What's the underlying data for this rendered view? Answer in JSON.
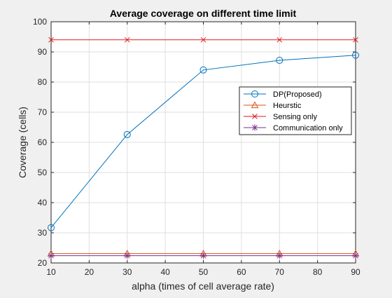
{
  "chart_data": {
    "type": "line",
    "title": "Average coverage on different time limit",
    "xlabel": "alpha (times of cell average rate)",
    "ylabel": "Coverage (cells)",
    "xlim": [
      10,
      90
    ],
    "ylim": [
      20,
      100
    ],
    "xticks": [
      10,
      20,
      30,
      40,
      50,
      60,
      70,
      80,
      90
    ],
    "yticks": [
      20,
      30,
      40,
      50,
      60,
      70,
      80,
      90,
      100
    ],
    "grid": true,
    "legend_position": "right",
    "x": [
      10,
      30,
      50,
      70,
      90
    ],
    "series": [
      {
        "name": "DP(Proposed)",
        "values": [
          31.7,
          62.6,
          84.0,
          87.2,
          88.9
        ],
        "color": "#0072bd",
        "marker": "circle"
      },
      {
        "name": "Heurstic",
        "values": [
          23.1,
          23.1,
          23.1,
          23.1,
          23.1
        ],
        "color": "#d95319",
        "marker": "triangle"
      },
      {
        "name": "Sensing only",
        "values": [
          94,
          94,
          94,
          94,
          94
        ],
        "color": "#e31a1c",
        "marker": "x"
      },
      {
        "name": "Communication only",
        "values": [
          22.4,
          22.4,
          22.4,
          22.4,
          22.4
        ],
        "color": "#7e2f8e",
        "marker": "asterisk"
      }
    ]
  }
}
